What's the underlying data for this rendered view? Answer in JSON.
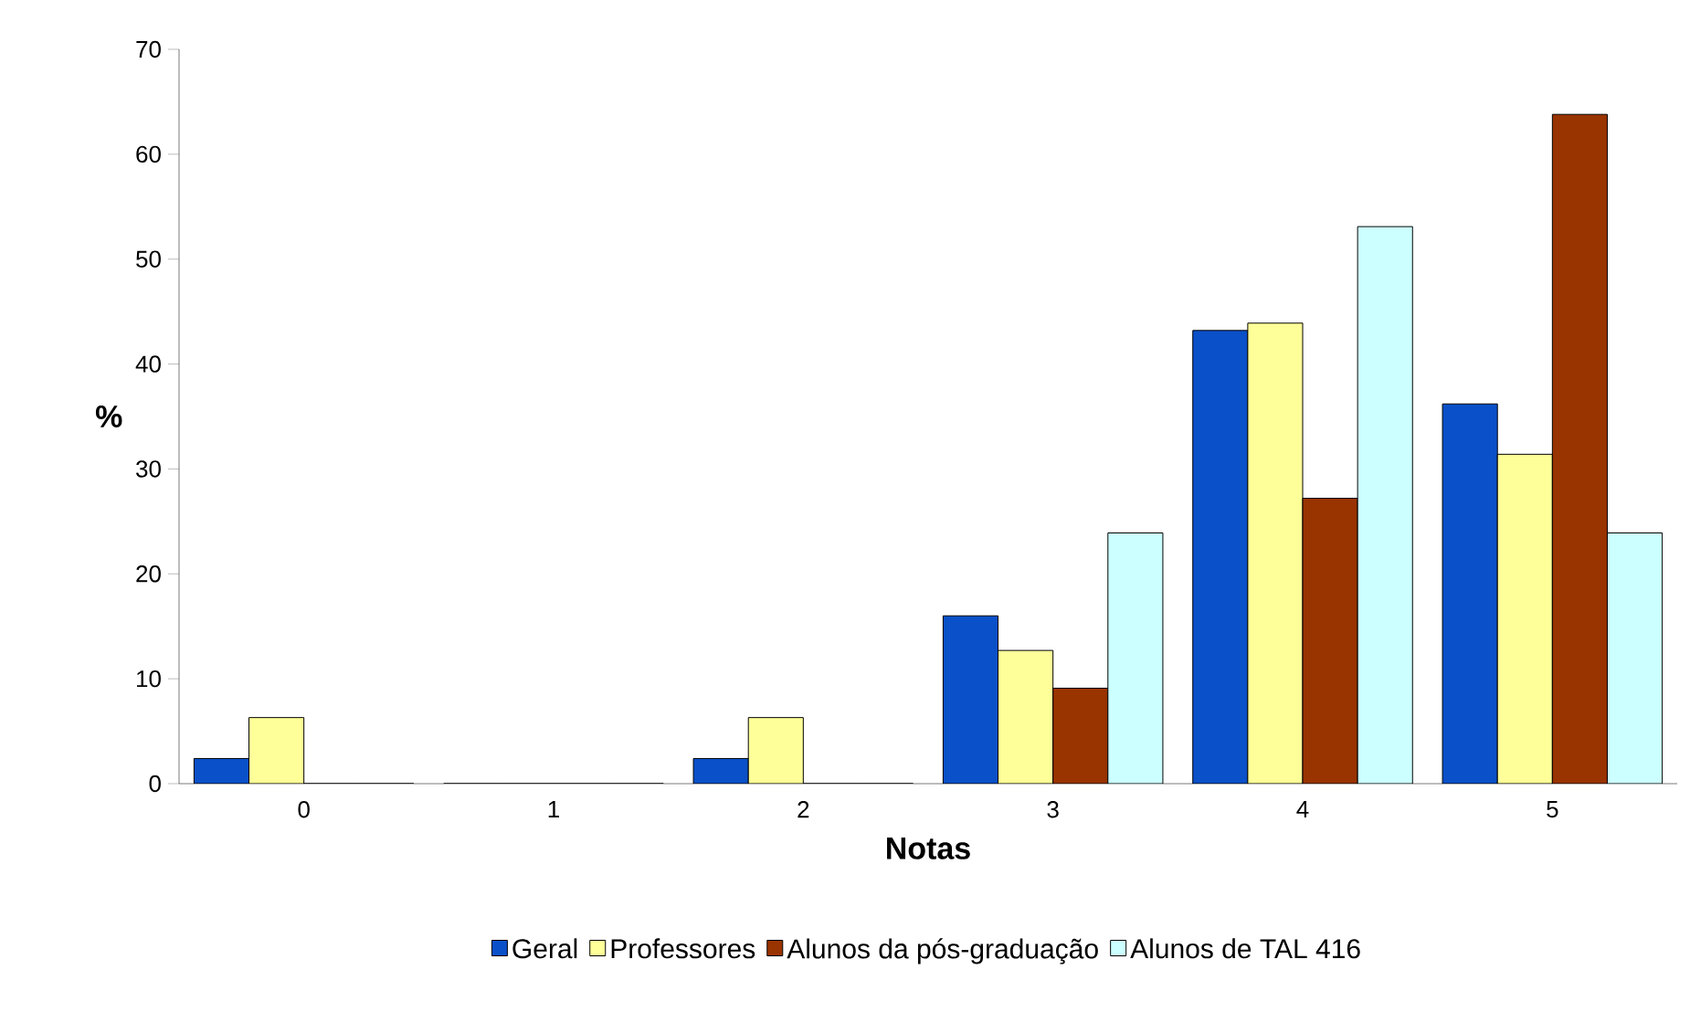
{
  "chart_data": {
    "type": "bar",
    "xlabel": "Notas",
    "ylabel": "%",
    "categories": [
      "0",
      "1",
      "2",
      "3",
      "4",
      "5"
    ],
    "series": [
      {
        "name": "Geral",
        "color": "#0a50c8",
        "values": [
          2.4,
          0,
          2.4,
          16.0,
          43.2,
          36.2
        ]
      },
      {
        "name": "Professores",
        "color": "#ffff99",
        "values": [
          6.3,
          0,
          6.3,
          12.7,
          43.9,
          31.4
        ]
      },
      {
        "name": "Alunos da pós-graduação",
        "color": "#993300",
        "values": [
          0,
          0,
          0,
          9.1,
          27.2,
          63.8
        ]
      },
      {
        "name": "Alunos de TAL 416",
        "color": "#ccffff",
        "values": [
          0,
          0,
          0,
          23.9,
          53.1,
          23.9
        ]
      }
    ],
    "ylim": [
      0,
      70
    ],
    "yticks": [
      0,
      10,
      20,
      30,
      40,
      50,
      60,
      70
    ],
    "grid": false,
    "legend": "bottom"
  }
}
